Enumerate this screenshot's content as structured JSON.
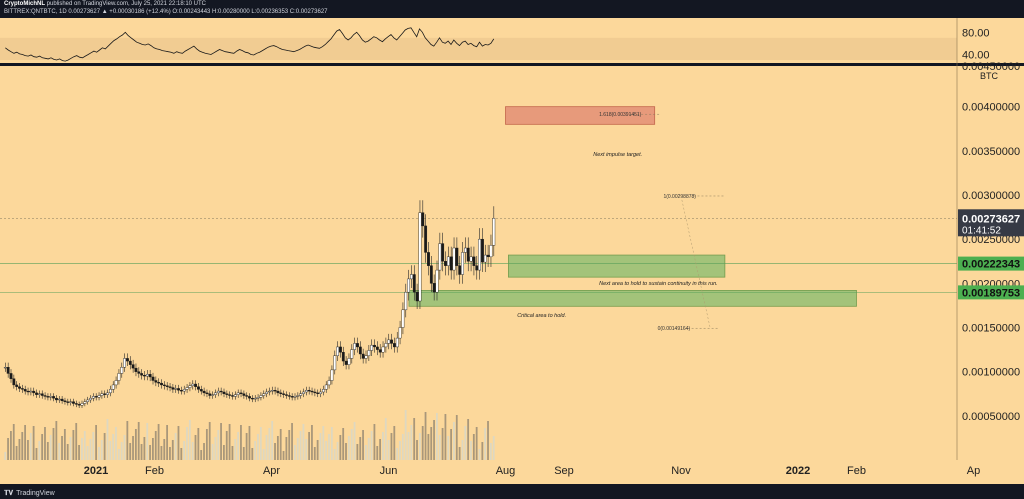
{
  "header": {
    "author": "CryptoMichNL",
    "published": "published on TradingView.com, July 25, 2021 22:18:10 UTC",
    "symbol_line": "BITTREX:QNTBTC, 1D  0.00273627  ▲ +0.00030186 (+12.4%)  O:0.00243443  H:0.00280000  L:0.00236353  C:0.00273627"
  },
  "brand": "TradingView",
  "colors": {
    "background": "#fcd89b",
    "frame": "#131722",
    "green_box": "#9fc279",
    "red_box": "#e6977a",
    "price_tag": "#363a45",
    "green_tag": "#4caf50"
  },
  "chart_data": {
    "type": "candlestick",
    "price_axis": {
      "unit": "BTC",
      "range": [
        0.0,
        0.0048
      ],
      "ticks": [
        "0.00050000",
        "0.00100000",
        "0.00150000",
        "0.00200000",
        "0.00250000",
        "0.00300000",
        "0.00350000",
        "0.00400000"
      ],
      "top_partial_label": "0.00450000"
    },
    "rsi_axis": {
      "range": [
        0,
        100
      ],
      "ticks": [
        "40.00",
        "80.00"
      ],
      "band": [
        30,
        70
      ]
    },
    "x_axis": {
      "ticks": [
        "2021",
        "Feb",
        "Apr",
        "Jun",
        "Aug",
        "Sep",
        "Nov",
        "2022",
        "Feb",
        "Ap"
      ]
    },
    "last_price": {
      "value": "0.00273627",
      "countdown": "01:41:52"
    },
    "levels": [
      {
        "value": "0.00222343"
      },
      {
        "value": "0.00189753"
      }
    ],
    "fib_labels": [
      {
        "text": "1.618(0.00391451)",
        "value": 0.00391451
      },
      {
        "text": "1(0.00298878)",
        "value": 0.00298878
      },
      {
        "text": "0(0.00149164)",
        "value": 0.00149164
      }
    ],
    "zones": [
      {
        "kind": "target",
        "low": 0.0038,
        "high": 0.004,
        "from_month": 7.0,
        "to_month": 9.55
      },
      {
        "kind": "hold",
        "low": 0.00207,
        "high": 0.00232,
        "from_month": 7.05,
        "to_month": 10.75
      },
      {
        "kind": "critical",
        "low": 0.00174,
        "high": 0.00192,
        "from_month": 5.35,
        "to_month": 13.0
      }
    ],
    "annotations": [
      {
        "text": "Next impulse target.",
        "value": 0.00344,
        "month": 8.5
      },
      {
        "text": "Next area to hold to sustain continuity in this run.",
        "value": 0.00198,
        "month": 8.6
      },
      {
        "text": "Critical area to hold.",
        "value": 0.00162,
        "month": 7.2
      }
    ],
    "closes": [
      0.00105,
      0.00098,
      0.00092,
      0.00085,
      0.00083,
      0.00081,
      0.0008,
      0.00078,
      0.00077,
      0.00078,
      0.00076,
      0.00074,
      0.00075,
      0.00073,
      0.00072,
      0.00071,
      0.00072,
      0.0007,
      0.00068,
      0.00069,
      0.00067,
      0.00066,
      0.00065,
      0.00066,
      0.00064,
      0.00063,
      0.00062,
      0.00064,
      0.00066,
      0.00068,
      0.0007,
      0.00072,
      0.00071,
      0.00073,
      0.00075,
      0.00074,
      0.00076,
      0.0008,
      0.00085,
      0.0009,
      0.00098,
      0.00105,
      0.00115,
      0.00112,
      0.00108,
      0.00104,
      0.001,
      0.00098,
      0.00096,
      0.00095,
      0.00097,
      0.00094,
      0.0009,
      0.00088,
      0.00087,
      0.00085,
      0.00084,
      0.00083,
      0.00082,
      0.0008,
      0.00081,
      0.00079,
      0.00078,
      0.0008,
      0.00082,
      0.00084,
      0.00086,
      0.00083,
      0.0008,
      0.00078,
      0.00076,
      0.00075,
      0.00073,
      0.00074,
      0.00076,
      0.00078,
      0.00077,
      0.00075,
      0.00074,
      0.00073,
      0.00072,
      0.00074,
      0.00076,
      0.00075,
      0.00073,
      0.00072,
      0.0007,
      0.00069,
      0.0007,
      0.00071,
      0.00073,
      0.00075,
      0.00077,
      0.00078,
      0.00079,
      0.00078,
      0.00076,
      0.00075,
      0.00074,
      0.00073,
      0.00072,
      0.00071,
      0.00072,
      0.00073,
      0.00075,
      0.00077,
      0.00079,
      0.00078,
      0.00077,
      0.00076,
      0.00075,
      0.00077,
      0.0008,
      0.00085,
      0.0009,
      0.00102,
      0.00118,
      0.00128,
      0.00122,
      0.00112,
      0.00108,
      0.00115,
      0.00125,
      0.00132,
      0.00128,
      0.0012,
      0.00115,
      0.00118,
      0.00124,
      0.0013,
      0.00128,
      0.00125,
      0.00122,
      0.00128,
      0.00132,
      0.00136,
      0.00132,
      0.00128,
      0.00138,
      0.0015,
      0.0017,
      0.0019,
      0.00205,
      0.0021,
      0.0019,
      0.0018,
      0.0028,
      0.00265,
      0.00235,
      0.0022,
      0.002,
      0.0019,
      0.00215,
      0.00245,
      0.00225,
      0.0022,
      0.0023,
      0.00215,
      0.0024,
      0.0022,
      0.0021,
      0.00235,
      0.0024,
      0.00225,
      0.0023,
      0.0022,
      0.00215,
      0.0025,
      0.00224,
      0.00232,
      0.0023,
      0.00243,
      0.00273627
    ],
    "rsi": [
      52,
      48,
      45,
      42,
      44,
      41,
      40,
      38,
      37,
      39,
      36,
      35,
      37,
      34,
      33,
      32,
      34,
      31,
      30,
      32,
      29,
      28,
      30,
      33,
      36,
      38,
      35,
      34,
      37,
      40,
      43,
      46,
      44,
      48,
      52,
      50,
      55,
      60,
      65,
      68,
      72,
      75,
      80,
      74,
      70,
      66,
      62,
      60,
      58,
      57,
      59,
      56,
      52,
      50,
      49,
      47,
      46,
      45,
      44,
      42,
      45,
      43,
      42,
      46,
      49,
      52,
      55,
      50,
      46,
      44,
      42,
      41,
      40,
      43,
      46,
      49,
      47,
      45,
      44,
      43,
      42,
      46,
      49,
      47,
      44,
      43,
      40,
      39,
      42,
      44,
      47,
      50,
      53,
      55,
      56,
      54,
      51,
      49,
      48,
      47,
      46,
      45,
      47,
      49,
      52,
      55,
      57,
      55,
      53,
      52,
      51,
      54,
      58,
      63,
      68,
      75,
      82,
      85,
      78,
      70,
      66,
      70,
      76,
      80,
      74,
      66,
      62,
      64,
      68,
      72,
      70,
      66,
      63,
      68,
      72,
      76,
      70,
      66,
      72,
      78,
      84,
      87,
      88,
      80,
      72,
      86,
      80,
      70,
      64,
      58,
      55,
      62,
      70,
      62,
      60,
      64,
      58,
      66,
      60,
      56,
      62,
      64,
      58,
      60,
      56,
      54,
      62,
      55,
      58,
      57,
      60,
      68
    ]
  }
}
